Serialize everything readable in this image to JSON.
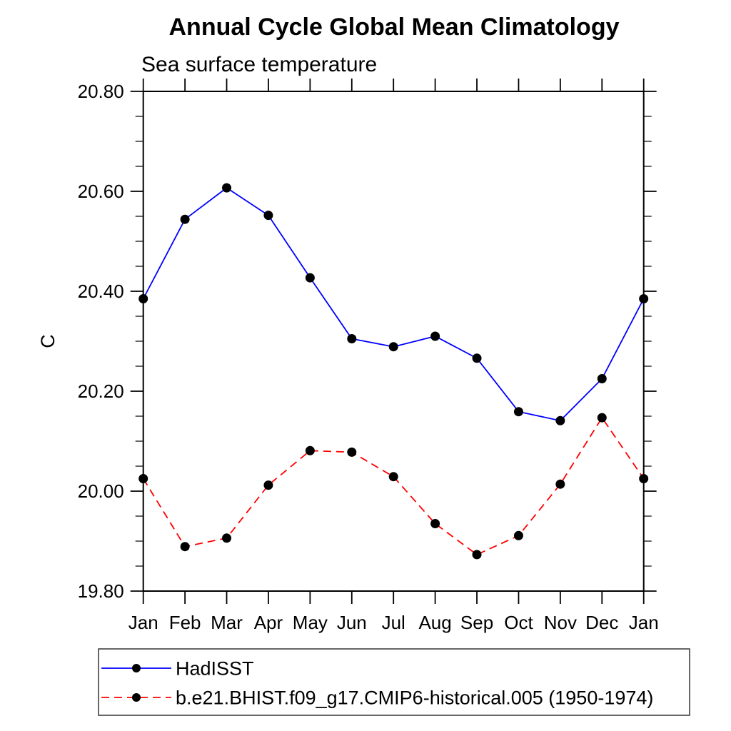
{
  "page": {
    "background_color": "#ffffff",
    "text_color": "#000000"
  },
  "chart_data": {
    "type": "line",
    "title": "Annual Cycle Global Mean Climatology",
    "subtitle": "Sea surface temperature",
    "ylabel": "C",
    "xlabel": "",
    "categories": [
      "Jan",
      "Feb",
      "Mar",
      "Apr",
      "May",
      "Jun",
      "Jul",
      "Aug",
      "Sep",
      "Oct",
      "Nov",
      "Dec",
      "Jan"
    ],
    "ylim": [
      19.8,
      20.8
    ],
    "ytick_step": 0.2,
    "yminor_step": 0.05,
    "ytick_labels": [
      "19.80",
      "20.00",
      "20.20",
      "20.40",
      "20.60",
      "20.80"
    ],
    "grid": false,
    "legend_position": "bottom-left-box",
    "series": [
      {
        "name": "HadISST",
        "color": "#0000ff",
        "line_style": "solid",
        "marker": "filled-circle",
        "marker_color": "#000000",
        "values": [
          20.385,
          20.544,
          20.607,
          20.552,
          20.427,
          20.305,
          20.289,
          20.31,
          20.266,
          20.159,
          20.141,
          20.225,
          20.385
        ]
      },
      {
        "name": "b.e21.BHIST.f09_g17.CMIP6-historical.005 (1950-1974)",
        "color": "#ff0000",
        "line_style": "dashed",
        "marker": "filled-circle",
        "marker_color": "#000000",
        "values": [
          20.025,
          19.889,
          19.906,
          20.012,
          20.081,
          20.078,
          20.029,
          19.935,
          19.873,
          19.911,
          20.014,
          20.147,
          20.025
        ]
      }
    ]
  }
}
